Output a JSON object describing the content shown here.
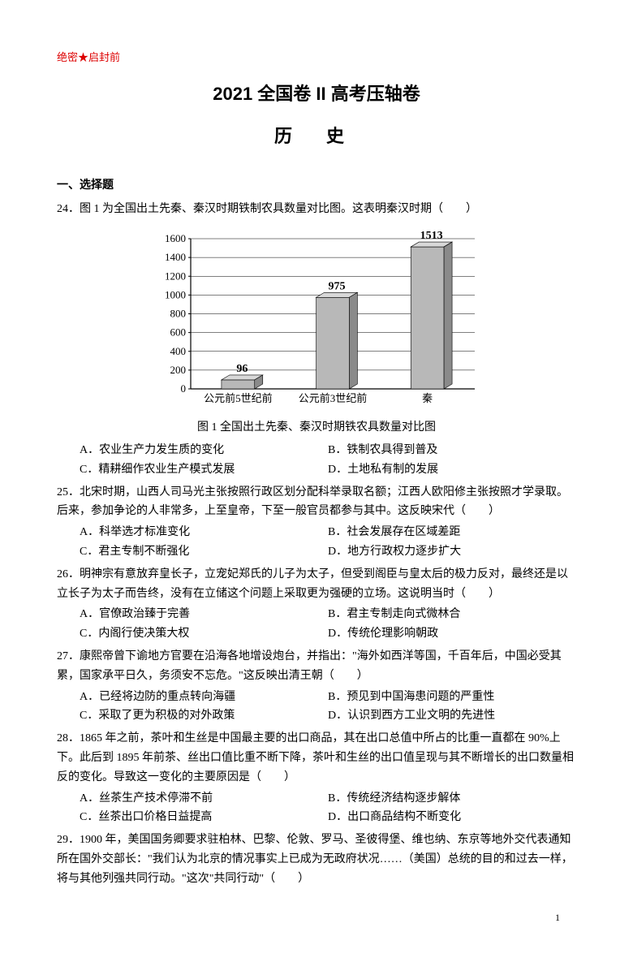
{
  "seal_text": "绝密★启封前",
  "main_title": "2021 全国卷 II 高考压轴卷",
  "subject": "历 史",
  "section_heading": "一、选择题",
  "chart": {
    "type": "bar",
    "categories": [
      "公元前5世纪前",
      "公元前3世纪前",
      "秦"
    ],
    "values": [
      96,
      975,
      1513
    ],
    "bar_colors": [
      "#b8b8b8",
      "#b8b8b8",
      "#b8b8b8"
    ],
    "ylim": [
      0,
      1600
    ],
    "ytick_step": 200,
    "yticks": [
      0,
      200,
      400,
      600,
      800,
      1000,
      1200,
      1400,
      1600
    ],
    "background": "#ffffff",
    "axis_color": "#000000",
    "grid_color": "#000000",
    "bar_width": 0.35,
    "value_label_fontsize": 14,
    "axis_label_fontsize": 13,
    "caption": "图 1 全国出土先秦、秦汉时期铁农具数量对比图"
  },
  "questions": [
    {
      "num": "24．",
      "stem": "图 1 为全国出土先秦、秦汉时期铁制农具数量对比图。这表明秦汉时期（　　）",
      "options": [
        {
          "k": "A．",
          "t": "农业生产力发生质的变化"
        },
        {
          "k": "B．",
          "t": "铁制农具得到普及"
        },
        {
          "k": "C．",
          "t": "精耕细作农业生产模式发展"
        },
        {
          "k": "D．",
          "t": "土地私有制的发展"
        }
      ]
    },
    {
      "num": "25．",
      "stem": "北宋时期，山西人司马光主张按照行政区划分配科举录取名额；江西人欧阳修主张按照才学录取。后来，参加争论的人非常多，上至皇帝，下至一般官员都参与其中。这反映宋代（　　）",
      "options": [
        {
          "k": "A．",
          "t": "科举选才标准变化"
        },
        {
          "k": "B．",
          "t": "社会发展存在区域差距"
        },
        {
          "k": "C．",
          "t": "君主专制不断强化"
        },
        {
          "k": "D．",
          "t": "地方行政权力逐步扩大"
        }
      ]
    },
    {
      "num": "26．",
      "stem": "明神宗有意放弃皇长子，立宠妃郑氏的儿子为太子，但受到阁臣与皇太后的极力反对，最终还是以立长子为太子而告终，没有在立储这个问题上采取更为强硬的立场。这说明当时（　　）",
      "options": [
        {
          "k": "A．",
          "t": "官僚政治臻于完善"
        },
        {
          "k": "B．",
          "t": "君主专制走向式微林合"
        },
        {
          "k": "C．",
          "t": "内阁行使决策大权"
        },
        {
          "k": "D．",
          "t": "传统伦理影响朝政"
        }
      ]
    },
    {
      "num": "27．",
      "stem": "康熙帝曾下谕地方官要在沿海各地增设炮台，并指出：\"海外如西洋等国，千百年后，中国必受其累，国家承平日久，务须安不忘危。\"这反映出清王朝（　　）",
      "options": [
        {
          "k": "A．",
          "t": "已经将边防的重点转向海疆"
        },
        {
          "k": "B．",
          "t": "预见到中国海患问题的严重性"
        },
        {
          "k": "C．",
          "t": "采取了更为积极的对外政策"
        },
        {
          "k": "D．",
          "t": "认识到西方工业文明的先进性"
        }
      ]
    },
    {
      "num": "28．",
      "stem": "1865 年之前，茶叶和生丝是中国最主要的出口商品，其在出口总值中所占的比重一直都在 90%上下。此后到 1895 年前茶、丝出口值比重不断下降，茶叶和生丝的出口值呈现与其不断增长的出口数量相反的变化。导致这一变化的主要原因是（　　）",
      "options": [
        {
          "k": "A．",
          "t": "丝茶生产技术停滞不前"
        },
        {
          "k": "B．",
          "t": "传统经济结构逐步解体"
        },
        {
          "k": "C．",
          "t": "丝茶出口价格日益提高"
        },
        {
          "k": "D．",
          "t": "出口商品结构不断变化"
        }
      ]
    },
    {
      "num": "29．",
      "stem": "1900 年，美国国务卿要求驻柏林、巴黎、伦敦、罗马、圣彼得堡、维也纳、东京等地外交代表通知所在国外交部长：\"我们认为北京的情况事实上已成为无政府状况……（美国）总统的目的和过去一样，将与其他列强共同行动。\"这次\"共同行动\"（　　）",
      "options": []
    }
  ],
  "page_number": "1"
}
